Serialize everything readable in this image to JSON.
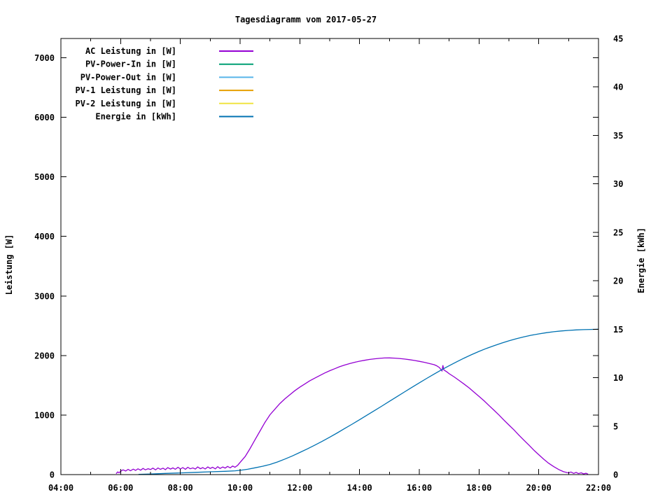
{
  "window": {
    "title": "Tagesdiagramm vom 2017-05-27"
  },
  "chart_data": {
    "type": "line",
    "title": "Tagesdiagramm vom 2017-05-27",
    "ylabel_left": "Leistung [W]",
    "ylabel_right": "Energie [kWh]",
    "grid": false,
    "legend_position": "top-left-inside",
    "x_axis": {
      "unit": "time",
      "range_hours": [
        4,
        22
      ],
      "major_tick_hours": 2,
      "minor_tick_hours": 1,
      "tick_labels": [
        "04:00",
        "06:00",
        "08:00",
        "10:00",
        "12:00",
        "14:00",
        "16:00",
        "18:00",
        "20:00",
        "22:00"
      ]
    },
    "y_left_axis": {
      "ticks": [
        0,
        1000,
        2000,
        3000,
        4000,
        5000,
        6000,
        7000
      ],
      "tick_labels": [
        "0",
        "1000",
        "2000",
        "3000",
        "4000",
        "5000",
        "6000",
        "7000"
      ],
      "range": [
        0,
        7320
      ]
    },
    "y_right_axis": {
      "ticks": [
        0,
        5,
        10,
        15,
        20,
        25,
        30,
        35,
        40,
        45
      ],
      "tick_labels": [
        "0",
        "5",
        "10",
        "15",
        "20",
        "25",
        "30",
        "35",
        "40",
        "45"
      ],
      "range": [
        0,
        45
      ]
    },
    "series": [
      {
        "name": "AC Leistung in [W]",
        "color": "#9400d3",
        "axis": "left",
        "points": [
          [
            5.85,
            15
          ],
          [
            5.9,
            45
          ],
          [
            5.95,
            30
          ],
          [
            6.0,
            55
          ],
          [
            6.08,
            80
          ],
          [
            6.17,
            60
          ],
          [
            6.25,
            88
          ],
          [
            6.33,
            65
          ],
          [
            6.42,
            92
          ],
          [
            6.5,
            70
          ],
          [
            6.58,
            98
          ],
          [
            6.67,
            74
          ],
          [
            6.75,
            103
          ],
          [
            6.83,
            80
          ],
          [
            6.92,
            99
          ],
          [
            7.0,
            85
          ],
          [
            7.08,
            108
          ],
          [
            7.17,
            80
          ],
          [
            7.25,
            112
          ],
          [
            7.33,
            88
          ],
          [
            7.42,
            108
          ],
          [
            7.5,
            84
          ],
          [
            7.58,
            118
          ],
          [
            7.67,
            93
          ],
          [
            7.75,
            113
          ],
          [
            7.83,
            89
          ],
          [
            7.92,
            122
          ],
          [
            8.0,
            94
          ],
          [
            8.08,
            118
          ],
          [
            8.17,
            89
          ],
          [
            8.25,
            123
          ],
          [
            8.33,
            98
          ],
          [
            8.42,
            113
          ],
          [
            8.5,
            93
          ],
          [
            8.58,
            128
          ],
          [
            8.67,
            99
          ],
          [
            8.75,
            118
          ],
          [
            8.83,
            94
          ],
          [
            8.92,
            128
          ],
          [
            9.0,
            103
          ],
          [
            9.08,
            123
          ],
          [
            9.17,
            96
          ],
          [
            9.25,
            133
          ],
          [
            9.33,
            104
          ],
          [
            9.42,
            128
          ],
          [
            9.5,
            109
          ],
          [
            9.58,
            138
          ],
          [
            9.67,
            113
          ],
          [
            9.75,
            143
          ],
          [
            9.83,
            123
          ],
          [
            9.92,
            158
          ],
          [
            10.0,
            205
          ],
          [
            10.17,
            305
          ],
          [
            10.33,
            435
          ],
          [
            10.5,
            585
          ],
          [
            10.67,
            735
          ],
          [
            10.83,
            875
          ],
          [
            11.0,
            1005
          ],
          [
            11.17,
            1102
          ],
          [
            11.33,
            1192
          ],
          [
            11.5,
            1272
          ],
          [
            11.67,
            1342
          ],
          [
            11.83,
            1408
          ],
          [
            12.0,
            1468
          ],
          [
            12.17,
            1524
          ],
          [
            12.33,
            1574
          ],
          [
            12.5,
            1620
          ],
          [
            12.67,
            1664
          ],
          [
            12.83,
            1706
          ],
          [
            13.0,
            1744
          ],
          [
            13.17,
            1779
          ],
          [
            13.33,
            1811
          ],
          [
            13.5,
            1840
          ],
          [
            13.67,
            1864
          ],
          [
            13.83,
            1886
          ],
          [
            14.0,
            1904
          ],
          [
            14.17,
            1920
          ],
          [
            14.33,
            1934
          ],
          [
            14.5,
            1944
          ],
          [
            14.67,
            1952
          ],
          [
            14.83,
            1958
          ],
          [
            15.0,
            1960
          ],
          [
            15.17,
            1956
          ],
          [
            15.33,
            1950
          ],
          [
            15.5,
            1941
          ],
          [
            15.67,
            1930
          ],
          [
            15.83,
            1917
          ],
          [
            16.0,
            1902
          ],
          [
            16.17,
            1886
          ],
          [
            16.33,
            1867
          ],
          [
            16.5,
            1845
          ],
          [
            16.58,
            1828
          ],
          [
            16.67,
            1798
          ],
          [
            16.72,
            1768
          ],
          [
            16.76,
            1742
          ],
          [
            16.79,
            1836
          ],
          [
            16.82,
            1758
          ],
          [
            16.92,
            1726
          ],
          [
            17.0,
            1694
          ],
          [
            17.17,
            1640
          ],
          [
            17.33,
            1582
          ],
          [
            17.5,
            1520
          ],
          [
            17.67,
            1455
          ],
          [
            17.83,
            1386
          ],
          [
            18.0,
            1314
          ],
          [
            18.17,
            1239
          ],
          [
            18.33,
            1161
          ],
          [
            18.5,
            1081
          ],
          [
            18.67,
            1000
          ],
          [
            18.83,
            918
          ],
          [
            19.0,
            834
          ],
          [
            19.17,
            750
          ],
          [
            19.33,
            665
          ],
          [
            19.5,
            580
          ],
          [
            19.67,
            496
          ],
          [
            19.83,
            414
          ],
          [
            20.0,
            334
          ],
          [
            20.17,
            258
          ],
          [
            20.33,
            192
          ],
          [
            20.5,
            134
          ],
          [
            20.67,
            85
          ],
          [
            20.83,
            48
          ],
          [
            21.0,
            28
          ],
          [
            21.08,
            44
          ],
          [
            21.17,
            20
          ],
          [
            21.25,
            38
          ],
          [
            21.33,
            17
          ],
          [
            21.42,
            30
          ],
          [
            21.5,
            12
          ],
          [
            21.58,
            22
          ],
          [
            21.65,
            8
          ]
        ]
      },
      {
        "name": "PV-Power-In in [W]",
        "color": "#009e73",
        "axis": "left",
        "points": []
      },
      {
        "name": "PV-Power-Out in [W]",
        "color": "#56b4e9",
        "axis": "left",
        "points": []
      },
      {
        "name": "PV-1 Leistung in [W]",
        "color": "#e69f00",
        "axis": "left",
        "points": []
      },
      {
        "name": "PV-2 Leistung in [W]",
        "color": "#f0e442",
        "axis": "left",
        "points": []
      },
      {
        "name": "Energie in [kWh]",
        "color": "#0072b2",
        "axis": "right",
        "points": [
          [
            6.6,
            0.02
          ],
          [
            7.0,
            0.06
          ],
          [
            7.5,
            0.12
          ],
          [
            8.0,
            0.17
          ],
          [
            8.5,
            0.23
          ],
          [
            9.0,
            0.29
          ],
          [
            9.5,
            0.34
          ],
          [
            9.83,
            0.39
          ],
          [
            10.0,
            0.44
          ],
          [
            10.25,
            0.55
          ],
          [
            10.5,
            0.7
          ],
          [
            10.75,
            0.86
          ],
          [
            11.0,
            1.05
          ],
          [
            11.25,
            1.3
          ],
          [
            11.5,
            1.6
          ],
          [
            11.75,
            1.93
          ],
          [
            12.0,
            2.28
          ],
          [
            12.25,
            2.65
          ],
          [
            12.5,
            3.04
          ],
          [
            12.75,
            3.44
          ],
          [
            13.0,
            3.86
          ],
          [
            13.25,
            4.3
          ],
          [
            13.5,
            4.75
          ],
          [
            13.75,
            5.2
          ],
          [
            14.0,
            5.66
          ],
          [
            14.25,
            6.13
          ],
          [
            14.5,
            6.6
          ],
          [
            14.75,
            7.08
          ],
          [
            15.0,
            7.56
          ],
          [
            15.25,
            8.04
          ],
          [
            15.5,
            8.52
          ],
          [
            15.75,
            9.0
          ],
          [
            16.0,
            9.47
          ],
          [
            16.25,
            9.93
          ],
          [
            16.5,
            10.38
          ],
          [
            16.75,
            10.82
          ],
          [
            17.0,
            11.24
          ],
          [
            17.25,
            11.64
          ],
          [
            17.5,
            12.02
          ],
          [
            17.75,
            12.38
          ],
          [
            18.0,
            12.71
          ],
          [
            18.25,
            13.02
          ],
          [
            18.5,
            13.3
          ],
          [
            18.75,
            13.56
          ],
          [
            19.0,
            13.8
          ],
          [
            19.25,
            14.02
          ],
          [
            19.5,
            14.21
          ],
          [
            19.75,
            14.38
          ],
          [
            20.0,
            14.52
          ],
          [
            20.25,
            14.64
          ],
          [
            20.5,
            14.74
          ],
          [
            20.75,
            14.82
          ],
          [
            21.0,
            14.88
          ],
          [
            21.25,
            14.93
          ],
          [
            21.5,
            14.96
          ],
          [
            21.75,
            14.98
          ],
          [
            22.0,
            15.0
          ]
        ]
      }
    ]
  }
}
